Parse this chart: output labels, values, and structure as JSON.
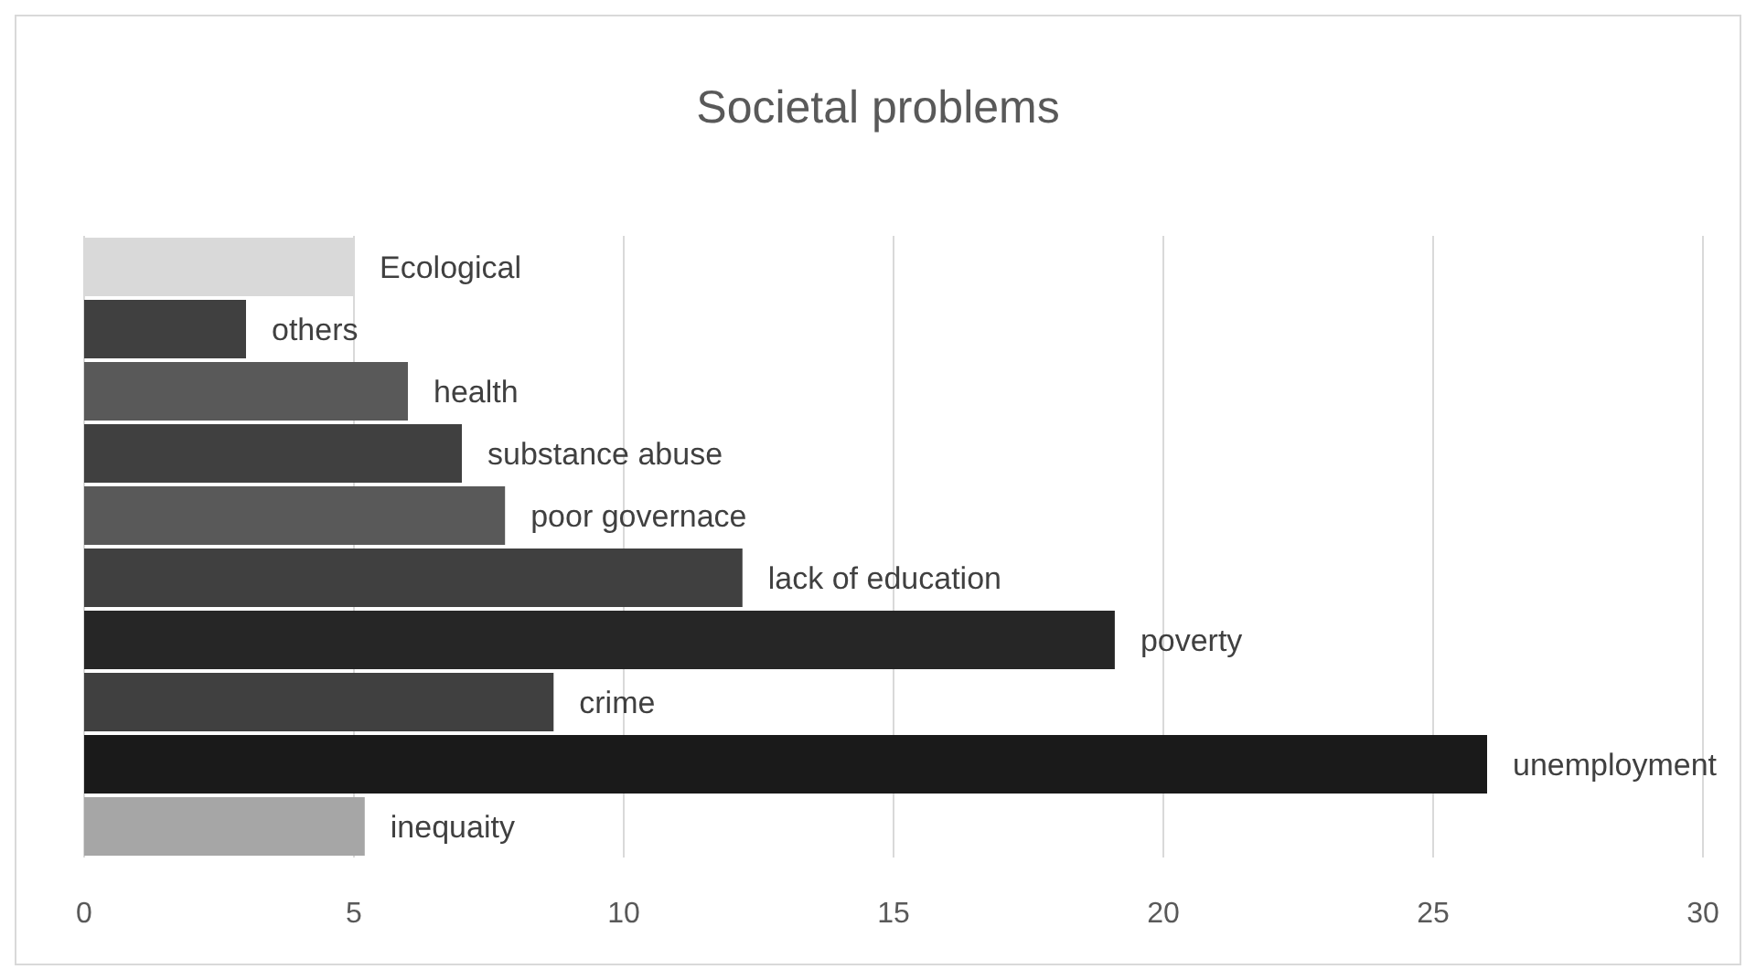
{
  "chart_data": {
    "type": "bar",
    "orientation": "horizontal",
    "title": "Societal problems",
    "categories": [
      "Ecological",
      "others",
      "health",
      "substance abuse",
      "poor governace",
      "lack of education",
      "poverty",
      "crime",
      "unemployment",
      "inequaity"
    ],
    "values": [
      5.0,
      3.0,
      6.0,
      7.0,
      7.8,
      12.2,
      19.1,
      8.7,
      26.0,
      5.2
    ],
    "colors": [
      "#d9d9d9",
      "#404040",
      "#595959",
      "#404040",
      "#595959",
      "#404040",
      "#262626",
      "#404040",
      "#1a1a1a",
      "#a6a6a6"
    ],
    "xlim": [
      0,
      30
    ],
    "xticks": [
      0,
      5,
      10,
      15,
      20,
      25,
      30
    ],
    "grid": "x",
    "tick_labels": "x"
  }
}
